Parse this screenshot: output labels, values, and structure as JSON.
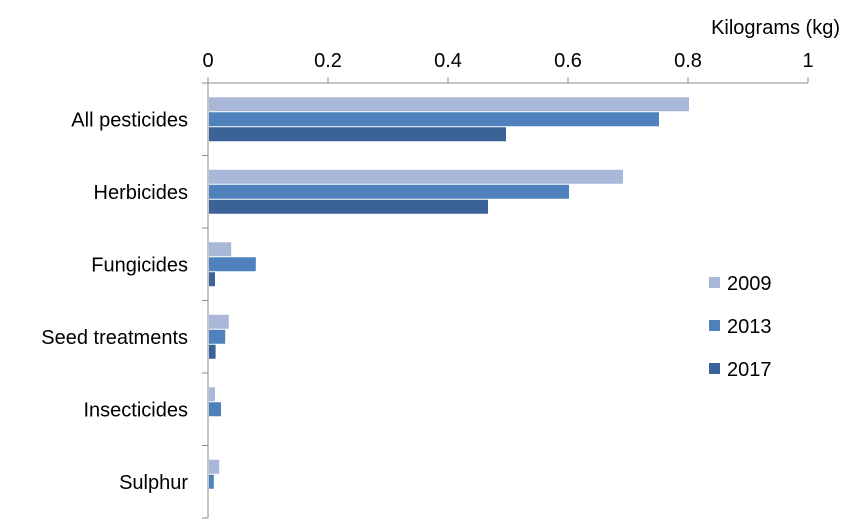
{
  "chart_data": {
    "type": "bar",
    "orientation": "horizontal",
    "unit_label": "Kilograms (kg)",
    "categories": [
      "All pesticides",
      "Herbicides",
      "Fungicides",
      "Seed treatments",
      "Insecticides",
      "Sulphur"
    ],
    "series": [
      {
        "name": "2009",
        "color": "#a9b8d8",
        "values": [
          0.8,
          0.69,
          0.037,
          0.033,
          0.01,
          0.017
        ]
      },
      {
        "name": "2013",
        "color": "#4f81bd",
        "values": [
          0.75,
          0.6,
          0.078,
          0.027,
          0.02,
          0.008
        ]
      },
      {
        "name": "2017",
        "color": "#3c6397",
        "values": [
          0.495,
          0.465,
          0.01,
          0.011,
          0.0,
          0.0
        ]
      }
    ],
    "xlim": [
      0,
      1
    ],
    "xticks": [
      0,
      0.2,
      0.4,
      0.6,
      0.8,
      1
    ],
    "xtick_labels": [
      "0",
      "0.2",
      "0.4",
      "0.6",
      "0.8",
      "1"
    ],
    "grid": false,
    "legend_position": "right"
  }
}
